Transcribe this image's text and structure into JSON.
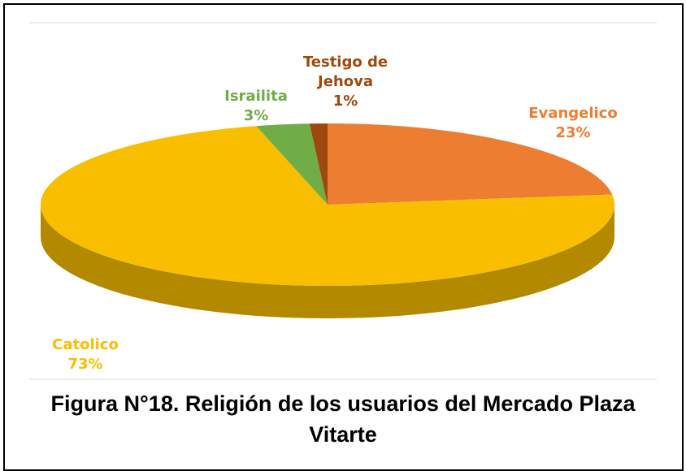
{
  "chart_data": {
    "type": "pie",
    "title": "Figura N°18. Religión de los usuarios del Mercado Plaza Vitarte",
    "categories": [
      "Evangelico",
      "Catolico",
      "Israilita",
      "Testigo de Jehova"
    ],
    "values": [
      23,
      73,
      3,
      1
    ],
    "value_labels": [
      "23%",
      "73%",
      "3%",
      "1%"
    ],
    "colors": [
      "#ED7D31",
      "#F9BE00",
      "#70AD47",
      "#9E480E"
    ]
  }
}
